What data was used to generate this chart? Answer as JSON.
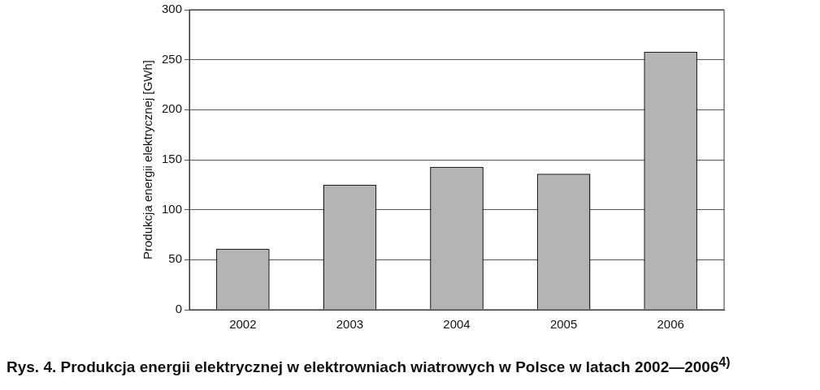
{
  "chart_data": {
    "type": "bar",
    "title": "Rys. 4. Produkcja energii elektrycznej w elektrowniach wiatrowych w Polsce w latach 2002—2006$^{4)}$",
    "ylabel": "Produkcja energii elektrycznej [GWh]",
    "categories": [
      "2002",
      "2003",
      "2004",
      "2005",
      "2006"
    ],
    "values": [
      61,
      125,
      143,
      136,
      258
    ],
    "color": "#b4b4b4",
    "ylim": [
      0,
      300
    ],
    "yticks": [
      0,
      50,
      100,
      150,
      200,
      250,
      300
    ],
    "grid": "y",
    "legend": false
  }
}
